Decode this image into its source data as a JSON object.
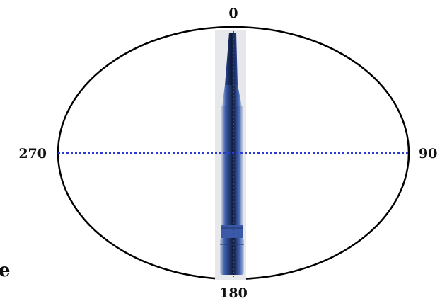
{
  "diagram": {
    "angles": {
      "top": "0",
      "right": "90",
      "bottom": "180",
      "left": "270"
    },
    "cropped_text": "e",
    "colors": {
      "circle": "#000000",
      "axis": "#2a3bd6",
      "antenna_body": "#2c4a9c",
      "antenna_dark": "#0f1a3a",
      "background": "#ffffff"
    }
  }
}
